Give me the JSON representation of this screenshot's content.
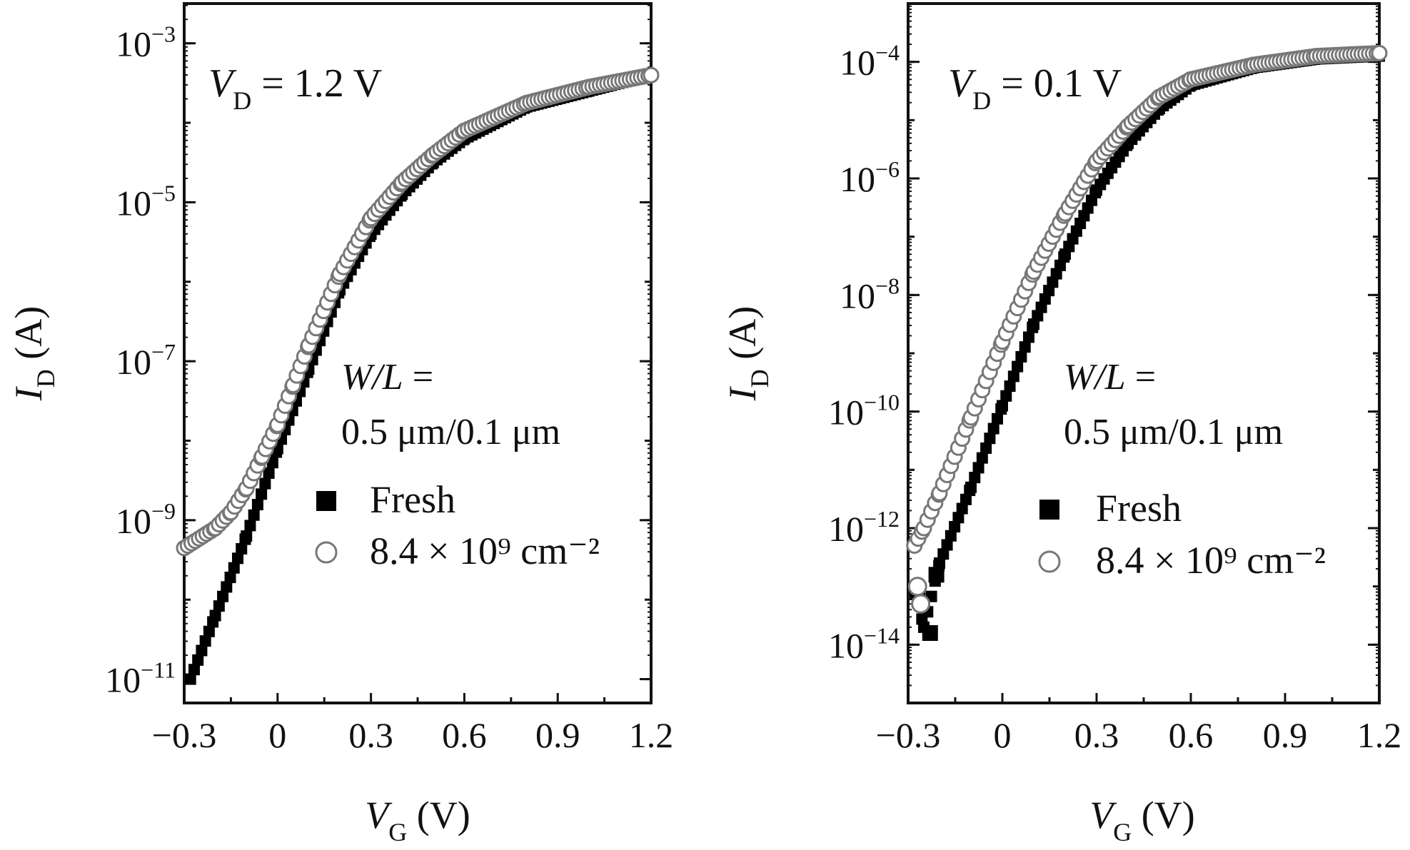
{
  "chart_data": [
    {
      "type": "scatter",
      "panel": "left",
      "annotation_main": "= 1.2 V",
      "annotation_var": "V",
      "annotation_sub": "D",
      "wl_label_var": "W/L =",
      "wl_value": "0.5 μm/0.1 μm",
      "xlabel_var": "V",
      "xlabel_sub": "G",
      "xlabel_unit": " (V)",
      "ylabel_var": "I",
      "ylabel_sub": "D",
      "ylabel_unit": " (A)",
      "xlim": [
        -0.3,
        1.2
      ],
      "ylim_log10": [
        -11.3,
        -2.5
      ],
      "yscale": "log",
      "xticks": [
        "−0.3",
        "0",
        "0.3",
        "0.6",
        "0.9",
        "1.2"
      ],
      "yticks": [
        {
          "base": "10",
          "exp": "−3"
        },
        {
          "base": "10",
          "exp": "−5"
        },
        {
          "base": "10",
          "exp": "−7"
        },
        {
          "base": "10",
          "exp": "−9"
        },
        {
          "base": "10",
          "exp": "−11"
        }
      ],
      "legend_placement": "center-right",
      "series": [
        {
          "name": "Fresh",
          "marker": "filled-square",
          "color": "#000000",
          "x": [
            -0.28,
            -0.2,
            -0.1,
            0.0,
            0.1,
            0.2,
            0.3,
            0.4,
            0.5,
            0.6,
            0.8,
            1.0,
            1.2
          ],
          "log10_y": [
            -11.0,
            -10.2,
            -9.2,
            -8.1,
            -7.1,
            -6.1,
            -5.4,
            -4.9,
            -4.5,
            -4.2,
            -3.8,
            -3.6,
            -3.4
          ]
        },
        {
          "name": "8.4 × 10⁹ cm⁻²",
          "marker": "open-circle",
          "color": "#777777",
          "x": [
            -0.3,
            -0.2,
            -0.15,
            -0.1,
            -0.05,
            0.0,
            0.05,
            0.1,
            0.2,
            0.3,
            0.4,
            0.5,
            0.6,
            0.8,
            1.0,
            1.2
          ],
          "log10_y": [
            -9.35,
            -9.1,
            -8.9,
            -8.6,
            -8.2,
            -7.8,
            -7.3,
            -6.8,
            -5.9,
            -5.2,
            -4.75,
            -4.4,
            -4.1,
            -3.75,
            -3.55,
            -3.4
          ]
        }
      ]
    },
    {
      "type": "scatter",
      "panel": "right",
      "annotation_main": "= 0.1 V",
      "annotation_var": "V",
      "annotation_sub": "D",
      "wl_label_var": "W/L =",
      "wl_value": "0.5 μm/0.1 μm",
      "xlabel_var": "V",
      "xlabel_sub": "G",
      "xlabel_unit": " (V)",
      "ylabel_var": "I",
      "ylabel_sub": "D",
      "ylabel_unit": " (A)",
      "xlim": [
        -0.3,
        1.2
      ],
      "ylim_log10": [
        -15.0,
        -3.0
      ],
      "yscale": "log",
      "xticks": [
        "−0.3",
        "0",
        "0.3",
        "0.6",
        "0.9",
        "1.2"
      ],
      "yticks": [
        {
          "base": "10",
          "exp": "−4"
        },
        {
          "base": "10",
          "exp": "−6"
        },
        {
          "base": "10",
          "exp": "−8"
        },
        {
          "base": "10",
          "exp": "−10"
        },
        {
          "base": "10",
          "exp": "−12"
        },
        {
          "base": "10",
          "exp": "−14"
        }
      ],
      "legend_placement": "center-right",
      "series": [
        {
          "name": "Fresh",
          "marker": "filled-square",
          "color": "#000000",
          "x": [
            -0.28,
            -0.25,
            -0.2,
            -0.1,
            0.0,
            0.1,
            0.2,
            0.3,
            0.4,
            0.5,
            0.6,
            0.8,
            1.0,
            1.2
          ],
          "log10_y": [
            -13.0,
            -13.7,
            -12.6,
            -11.3,
            -9.9,
            -8.5,
            -7.3,
            -6.2,
            -5.4,
            -4.8,
            -4.4,
            -4.1,
            -3.95,
            -3.9
          ],
          "outliers_x": [
            -0.27,
            -0.23,
            -0.21
          ],
          "outliers_log10_y": [
            -13.1,
            -13.8,
            -12.8
          ]
        },
        {
          "name": "8.4 × 10⁹ cm⁻²",
          "marker": "open-circle",
          "color": "#777777",
          "x": [
            -0.28,
            -0.25,
            -0.2,
            -0.1,
            0.0,
            0.1,
            0.2,
            0.3,
            0.4,
            0.5,
            0.6,
            0.8,
            1.0,
            1.2
          ],
          "log10_y": [
            -12.3,
            -12.0,
            -11.4,
            -10.1,
            -8.8,
            -7.6,
            -6.6,
            -5.7,
            -5.1,
            -4.6,
            -4.3,
            -4.05,
            -3.9,
            -3.85
          ],
          "outliers_x": [
            -0.27,
            -0.26
          ],
          "outliers_log10_y": [
            -13.0,
            -13.3
          ]
        }
      ]
    }
  ]
}
